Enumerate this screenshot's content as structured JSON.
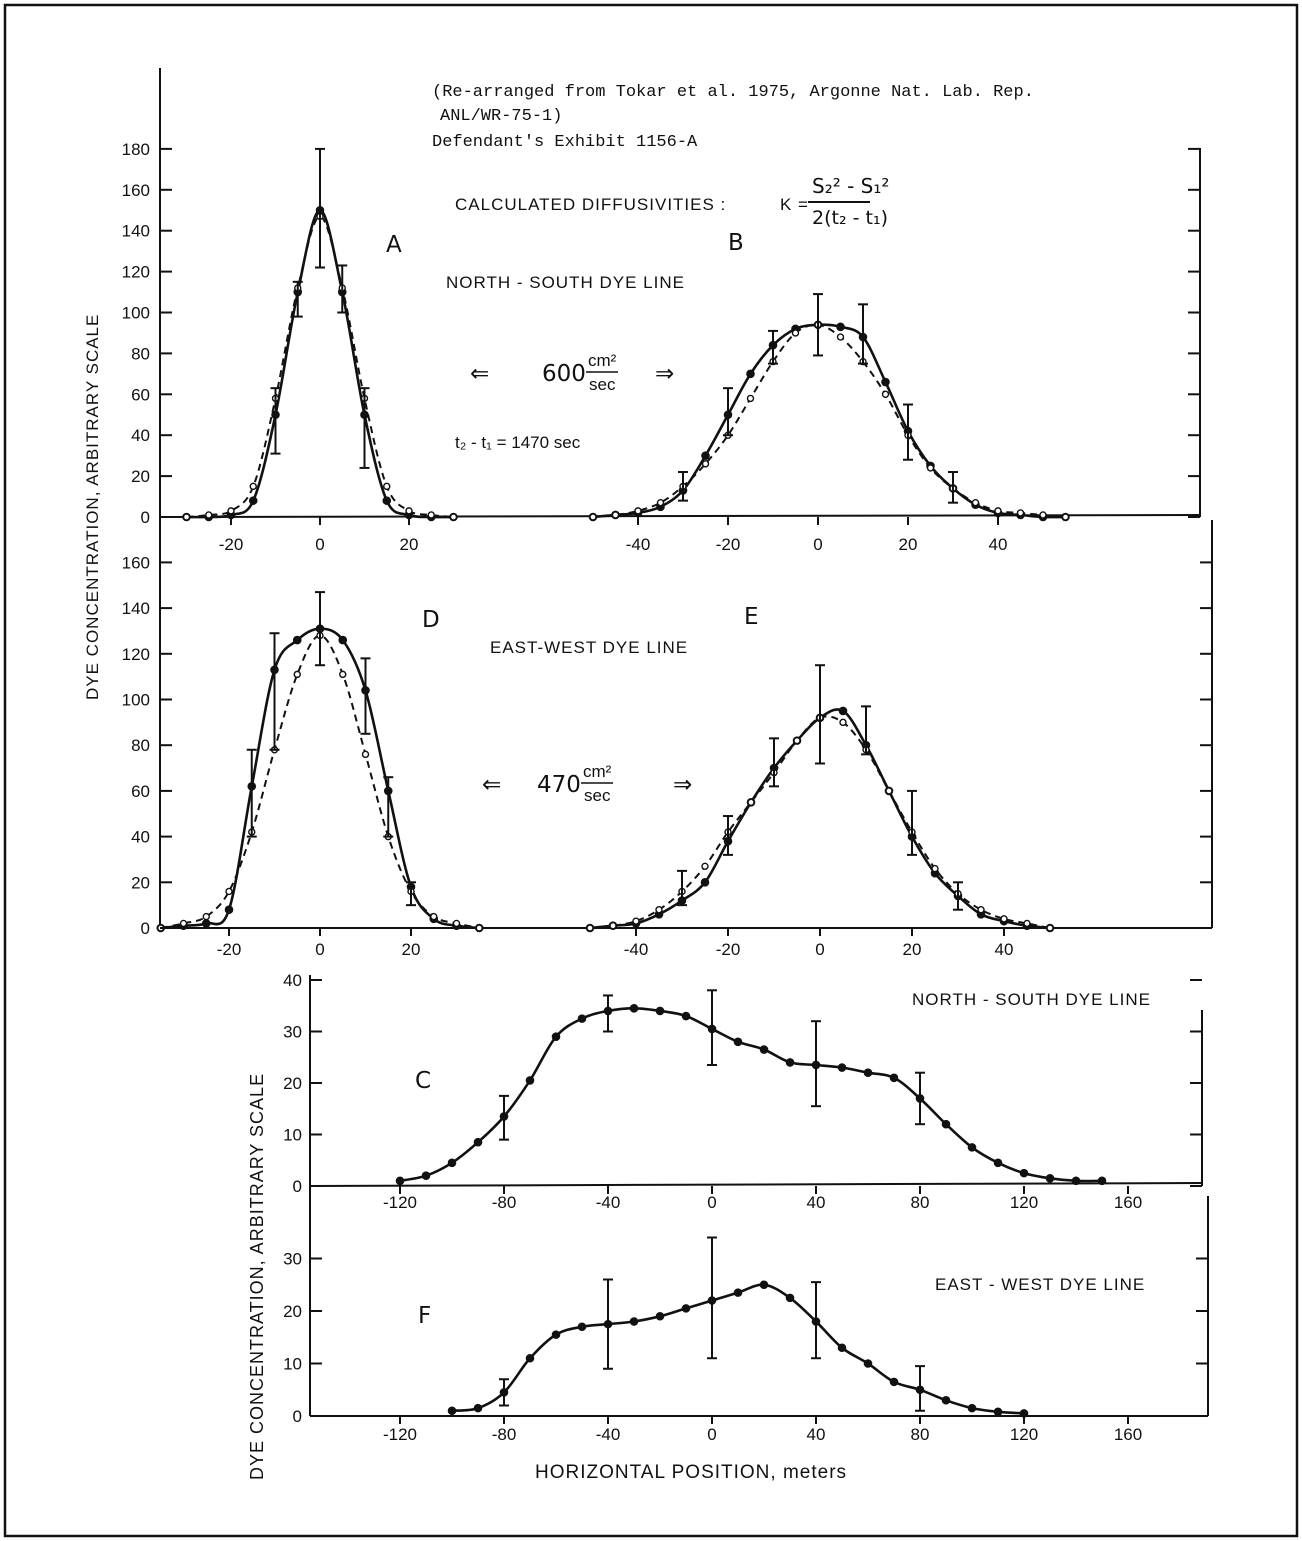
{
  "source_note": {
    "line1": "(Re-arranged from Tokar et al. 1975, Argonne Nat. Lab. Rep.",
    "line2": "ANL/WR-75-1)",
    "line3": "Defendant's Exhibit 1156-A"
  },
  "formula": {
    "label": "CALCULATED DIFFUSIVITIES :",
    "lhs": "K =",
    "numerator": "S₂² - S₁²",
    "denominator": "2(t₂ - t₁)"
  },
  "annotations": {
    "ns_line": "NORTH - SOUTH DYE LINE",
    "ew_line": "EAST-WEST DYE LINE",
    "ns_k_value": "600",
    "ew_k_value": "470",
    "k_unit_num": "cm²",
    "k_unit_den": "sec",
    "dt": "t₂ - t₁ = 1470 sec",
    "ns_line_c": "NORTH - SOUTH DYE LINE",
    "ew_line_f": "EAST - WEST DYE LINE",
    "arrow_left": "⇐",
    "arrow_right": "⇒"
  },
  "axes": {
    "upper_ylabel": "DYE CONCENTRATION, ARBITRARY SCALE",
    "lower_ylabel": "DYE CONCENTRATION, ARBITRARY SCALE",
    "lower_xlabel": "HORIZONTAL POSITION, meters"
  },
  "chart_data": [
    {
      "panel": "A",
      "type": "line",
      "label": "A",
      "ylim": [
        0,
        180
      ],
      "yticks": [
        0,
        20,
        40,
        60,
        80,
        100,
        120,
        140,
        160,
        180
      ],
      "xticks": [
        -20,
        0,
        20
      ],
      "series": [
        {
          "style": "solid",
          "x": [
            -30,
            -25,
            -20,
            -15,
            -10,
            -5,
            0,
            5,
            10,
            15,
            20,
            25,
            30
          ],
          "y": [
            0,
            0,
            1,
            8,
            50,
            110,
            150,
            110,
            50,
            8,
            1,
            0,
            0
          ]
        },
        {
          "style": "dashed",
          "x": [
            -30,
            -25,
            -20,
            -15,
            -10,
            -5,
            0,
            5,
            10,
            15,
            20,
            25,
            30
          ],
          "y": [
            0,
            1,
            3,
            15,
            58,
            112,
            147,
            112,
            58,
            15,
            3,
            1,
            0
          ]
        }
      ],
      "error_bars": [
        {
          "x": -10,
          "low": 31,
          "high": 63
        },
        {
          "x": -5,
          "low": 98,
          "high": 115
        },
        {
          "x": 0,
          "low": 122,
          "high": 180
        },
        {
          "x": 5,
          "low": 100,
          "high": 123
        },
        {
          "x": 10,
          "low": 24,
          "high": 63
        }
      ]
    },
    {
      "panel": "B",
      "type": "line",
      "label": "B",
      "ylim": [
        0,
        180
      ],
      "xticks": [
        -40,
        -20,
        0,
        20,
        40
      ],
      "series": [
        {
          "style": "solid",
          "x": [
            -50,
            -45,
            -40,
            -35,
            -30,
            -25,
            -20,
            -15,
            -10,
            -5,
            0,
            5,
            10,
            15,
            20,
            25,
            30,
            35,
            40,
            45,
            50,
            55
          ],
          "y": [
            0,
            1,
            2,
            5,
            13,
            30,
            50,
            70,
            84,
            92,
            94,
            93,
            88,
            66,
            42,
            25,
            14,
            6,
            2,
            1,
            0,
            0
          ]
        },
        {
          "style": "dashed",
          "x": [
            -50,
            -45,
            -40,
            -35,
            -30,
            -25,
            -20,
            -15,
            -10,
            -5,
            0,
            5,
            10,
            15,
            20,
            25,
            30,
            35,
            40,
            45,
            50,
            55
          ],
          "y": [
            0,
            1,
            3,
            7,
            15,
            26,
            40,
            58,
            76,
            90,
            94,
            88,
            76,
            60,
            40,
            24,
            14,
            7,
            3,
            2,
            1,
            0
          ]
        }
      ],
      "error_bars": [
        {
          "x": -30,
          "low": 8,
          "high": 22
        },
        {
          "x": -20,
          "low": 40,
          "high": 63
        },
        {
          "x": -10,
          "low": 75,
          "high": 91
        },
        {
          "x": 0,
          "low": 79,
          "high": 109
        },
        {
          "x": 10,
          "low": 75,
          "high": 104
        },
        {
          "x": 20,
          "low": 28,
          "high": 55
        },
        {
          "x": 30,
          "low": 7,
          "high": 22
        }
      ]
    },
    {
      "panel": "D",
      "type": "line",
      "label": "D",
      "ylim": [
        0,
        160
      ],
      "yticks": [
        0,
        20,
        40,
        60,
        80,
        100,
        120,
        140,
        160
      ],
      "xticks": [
        -20,
        0,
        20
      ],
      "series": [
        {
          "style": "solid",
          "x": [
            -35,
            -30,
            -25,
            -20,
            -15,
            -10,
            -5,
            0,
            5,
            10,
            15,
            20,
            25,
            30,
            35
          ],
          "y": [
            0,
            1,
            2,
            8,
            62,
            113,
            126,
            131,
            126,
            104,
            60,
            18,
            4,
            1,
            0
          ]
        },
        {
          "style": "dashed",
          "x": [
            -35,
            -30,
            -25,
            -20,
            -15,
            -10,
            -5,
            0,
            5,
            10,
            15,
            20,
            25,
            30,
            35
          ],
          "y": [
            0,
            2,
            5,
            16,
            42,
            78,
            111,
            128,
            111,
            76,
            40,
            16,
            5,
            2,
            0
          ]
        }
      ],
      "error_bars": [
        {
          "x": -15,
          "low": 40,
          "high": 78
        },
        {
          "x": -10,
          "low": 78,
          "high": 129
        },
        {
          "x": 0,
          "low": 115,
          "high": 147
        },
        {
          "x": 10,
          "low": 85,
          "high": 118
        },
        {
          "x": 15,
          "low": 40,
          "high": 66
        },
        {
          "x": 20,
          "low": 10,
          "high": 20
        }
      ]
    },
    {
      "panel": "E",
      "type": "line",
      "label": "E",
      "ylim": [
        0,
        160
      ],
      "xticks": [
        -40,
        -20,
        0,
        20,
        40
      ],
      "series": [
        {
          "style": "solid",
          "x": [
            -50,
            -45,
            -40,
            -35,
            -30,
            -25,
            -20,
            -15,
            -10,
            -5,
            0,
            5,
            10,
            15,
            20,
            25,
            30,
            35,
            40,
            45,
            50
          ],
          "y": [
            0,
            1,
            2,
            6,
            12,
            20,
            38,
            55,
            70,
            82,
            92,
            95,
            80,
            60,
            40,
            24,
            14,
            6,
            3,
            1,
            0
          ]
        },
        {
          "style": "dashed",
          "x": [
            -50,
            -45,
            -40,
            -35,
            -30,
            -25,
            -20,
            -15,
            -10,
            -5,
            0,
            5,
            10,
            15,
            20,
            25,
            30,
            35,
            40,
            45,
            50
          ],
          "y": [
            0,
            1,
            3,
            8,
            16,
            27,
            42,
            55,
            68,
            82,
            92,
            90,
            78,
            60,
            42,
            26,
            15,
            8,
            4,
            2,
            0
          ]
        }
      ],
      "error_bars": [
        {
          "x": -30,
          "low": 10,
          "high": 25
        },
        {
          "x": -20,
          "low": 32,
          "high": 49
        },
        {
          "x": -10,
          "low": 62,
          "high": 83
        },
        {
          "x": 0,
          "low": 72,
          "high": 115
        },
        {
          "x": 10,
          "low": 76,
          "high": 97
        },
        {
          "x": 20,
          "low": 32,
          "high": 60
        },
        {
          "x": 30,
          "low": 8,
          "high": 20
        }
      ]
    },
    {
      "panel": "C",
      "type": "line",
      "label": "C",
      "ylim": [
        0,
        40
      ],
      "yticks": [
        0,
        10,
        20,
        30,
        40
      ],
      "xticks": [
        -120,
        -80,
        -40,
        0,
        40,
        80,
        120,
        160
      ],
      "series": [
        {
          "style": "solid",
          "x": [
            -120,
            -110,
            -100,
            -90,
            -80,
            -70,
            -60,
            -50,
            -40,
            -30,
            -20,
            -10,
            0,
            10,
            20,
            30,
            40,
            50,
            60,
            70,
            80,
            90,
            100,
            110,
            120,
            130,
            140,
            150
          ],
          "y": [
            1,
            2,
            4.5,
            8.5,
            13.5,
            20.5,
            29,
            32.5,
            34,
            34.5,
            34,
            33,
            30.5,
            28,
            26.5,
            24,
            23.5,
            23,
            22,
            21,
            17,
            12,
            7.5,
            4.5,
            2.5,
            1.5,
            1,
            1
          ]
        }
      ],
      "error_bars": [
        {
          "x": -80,
          "low": 9,
          "high": 17.5
        },
        {
          "x": -40,
          "low": 30,
          "high": 37
        },
        {
          "x": 0,
          "low": 23.5,
          "high": 38
        },
        {
          "x": 40,
          "low": 15.5,
          "high": 32
        },
        {
          "x": 80,
          "low": 12,
          "high": 22
        }
      ]
    },
    {
      "panel": "F",
      "type": "line",
      "label": "F",
      "ylim": [
        0,
        40
      ],
      "yticks": [
        0,
        10,
        20,
        30
      ],
      "xticks": [
        -120,
        -80,
        -40,
        0,
        40,
        80,
        120,
        160
      ],
      "series": [
        {
          "style": "solid",
          "x": [
            -100,
            -90,
            -80,
            -70,
            -60,
            -50,
            -40,
            -30,
            -20,
            -10,
            0,
            10,
            20,
            30,
            40,
            50,
            60,
            70,
            80,
            90,
            100,
            110,
            120
          ],
          "y": [
            1,
            1.5,
            4.5,
            11,
            15.5,
            17,
            17.5,
            18,
            19,
            20.5,
            22,
            23.5,
            25,
            22.5,
            18,
            13,
            10,
            6.5,
            5,
            3,
            1.5,
            0.8,
            0.5
          ]
        }
      ],
      "error_bars": [
        {
          "x": -80,
          "low": 2,
          "high": 7
        },
        {
          "x": -40,
          "low": 9,
          "high": 26
        },
        {
          "x": 0,
          "low": 11,
          "high": 34
        },
        {
          "x": 40,
          "low": 11,
          "high": 25.5
        },
        {
          "x": 80,
          "low": 1,
          "high": 9.5
        }
      ]
    }
  ]
}
